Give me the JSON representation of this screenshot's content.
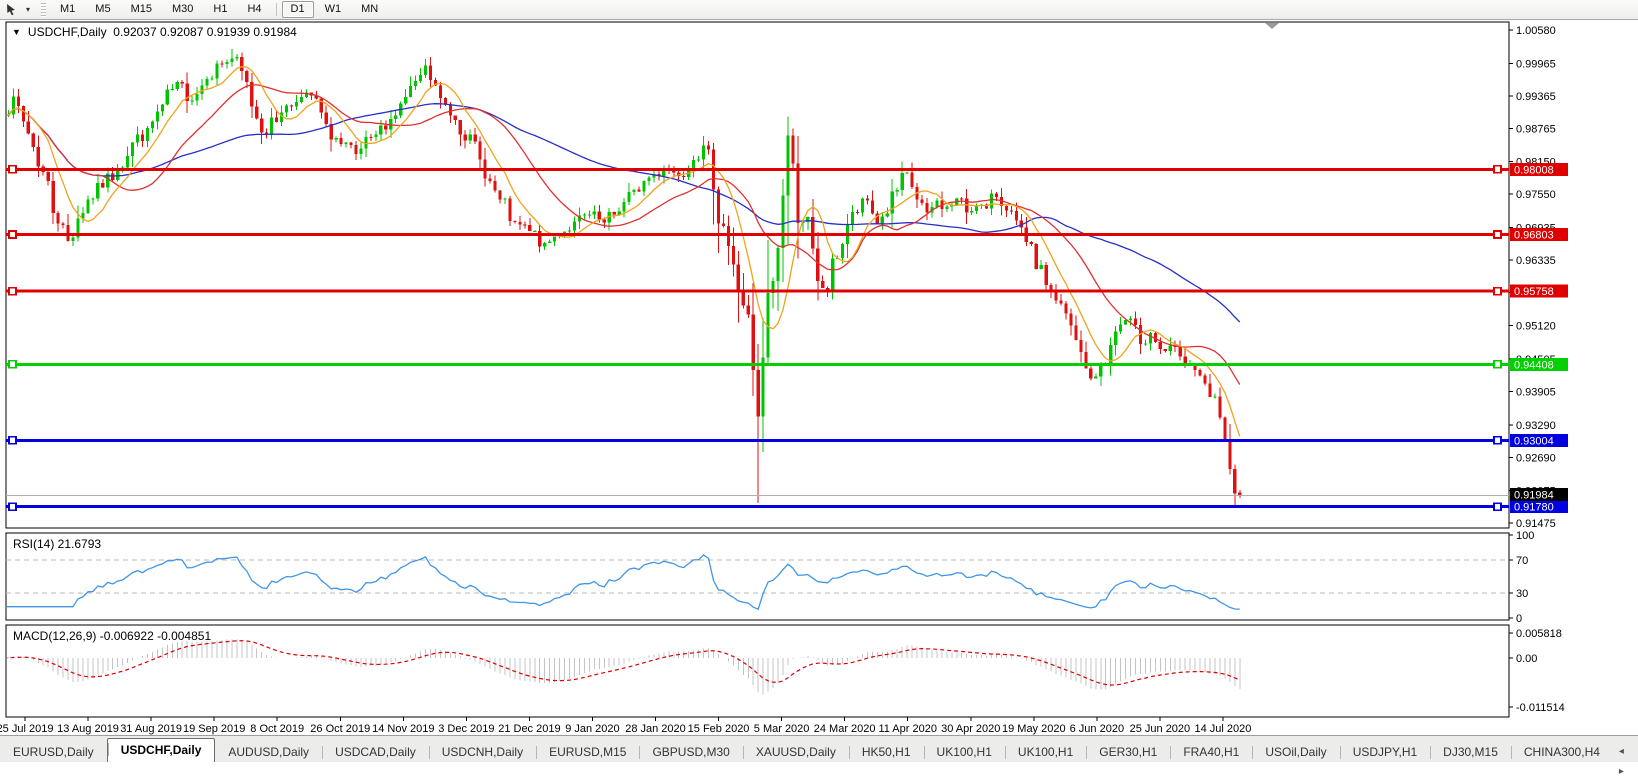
{
  "toolbar": {
    "timeframes": [
      "M1",
      "M5",
      "M15",
      "M30",
      "H1",
      "H4",
      "D1",
      "W1",
      "MN"
    ],
    "active_timeframe": "D1"
  },
  "tabs": {
    "items": [
      "EURUSD,Daily",
      "USDCHF,Daily",
      "AUDUSD,Daily",
      "USDCAD,Daily",
      "USDCNH,Daily",
      "EURUSD,M15",
      "GBPUSD,M30",
      "XAUUSD,Daily",
      "HK50,H1",
      "UK100,H1",
      "UK100,H1",
      "GER30,H1",
      "FRA40,H1",
      "USOil,Daily",
      "USDJPY,H1",
      "DJ30,M15",
      "CHINA300,H4"
    ],
    "active": "USDCHF,Daily",
    "scroll_left": "◂",
    "scroll_right": "▸"
  },
  "chart_data": {
    "type": "candlestick",
    "symbol": "USDCHF",
    "period": "Daily",
    "title": "USDCHF,Daily",
    "title_triangle": "▼",
    "ohlc_text": "0.92037 0.92087 0.91939 0.91984",
    "ohlc": {
      "open": "0.92037",
      "high": "0.92087",
      "low": "0.91939",
      "close": "0.91984"
    },
    "price_axis": {
      "ticks": [
        "1.00580",
        "0.99965",
        "0.99365",
        "0.98765",
        "0.98150",
        "0.97550",
        "0.96935",
        "0.96335",
        "0.95735",
        "0.95120",
        "0.94505",
        "0.93905",
        "0.93290",
        "0.92690",
        "0.92075",
        "0.91475"
      ]
    },
    "time_axis": {
      "labels": [
        "25 Jul 2019",
        "13 Aug 2019",
        "31 Aug 2019",
        "19 Sep 2019",
        "8 Oct 2019",
        "26 Oct 2019",
        "14 Nov 2019",
        "3 Dec 2019",
        "21 Dec 2019",
        "9 Jan 2020",
        "28 Jan 2020",
        "15 Feb 2020",
        "5 Mar 2020",
        "24 Mar 2020",
        "11 Apr 2020",
        "30 Apr 2020",
        "19 May 2020",
        "6 Jun 2020",
        "25 Jun 2020",
        "14 Jul 2020"
      ]
    },
    "hlines": [
      {
        "label": "0.98008",
        "price": 0.98008,
        "color": "#e00000"
      },
      {
        "label": "0.96803",
        "price": 0.96803,
        "color": "#e00000"
      },
      {
        "label": "0.95758",
        "price": 0.95758,
        "color": "#e00000"
      },
      {
        "label": "0.94408",
        "price": 0.94408,
        "color": "#00d000"
      },
      {
        "label": "0.93004",
        "price": 0.93004,
        "color": "#0000e0"
      },
      {
        "label": "0.91780",
        "price": 0.9178,
        "color": "#0000e0"
      }
    ],
    "bid_line": {
      "label": "0.91984",
      "price": 0.91984,
      "line_color": "#b0b0b0",
      "label_bg": "#000000",
      "label_fg": "#ffffff"
    },
    "moving_averages": [
      {
        "name": "fast",
        "window": 8,
        "color": "#efa31d"
      },
      {
        "name": "medium",
        "window": 21,
        "color": "#e03030"
      },
      {
        "name": "slow",
        "window": 55,
        "color": "#2730c8"
      }
    ],
    "indicators": {
      "rsi": {
        "label": "RSI(14) 21.6793",
        "period": 14,
        "value": "21.6793",
        "levels": [
          70,
          30
        ],
        "axis_ticks": [
          "100",
          "70",
          "30",
          "0"
        ],
        "color": "#3f96e8"
      },
      "macd": {
        "label": "MACD(12,26,9) -0.006922 -0.004851",
        "params": "12,26,9",
        "main_value": "-0.006922",
        "signal_value": "-0.004851",
        "axis_ticks": [
          "0.005818",
          "0.00",
          "-0.011514"
        ],
        "hist_color": "#c4c4c4",
        "signal_color": "#e00000"
      }
    },
    "candles": {
      "count": 250,
      "bull_color": "#00c400",
      "bear_color": "#e01010",
      "first_open": 0.989,
      "last_close": 0.91984,
      "anchors": [
        [
          0,
          0.9905
        ],
        [
          2,
          0.9928
        ],
        [
          5,
          0.9868
        ],
        [
          8,
          0.9795
        ],
        [
          11,
          0.9705
        ],
        [
          13,
          0.9668
        ],
        [
          15,
          0.9712
        ],
        [
          17,
          0.9745
        ],
        [
          20,
          0.977
        ],
        [
          23,
          0.9802
        ],
        [
          26,
          0.985
        ],
        [
          29,
          0.9872
        ],
        [
          32,
          0.9918
        ],
        [
          35,
          0.9958
        ],
        [
          38,
          0.9932
        ],
        [
          41,
          0.9972
        ],
        [
          44,
          0.9996
        ],
        [
          46,
          1.0006
        ],
        [
          49,
          0.9958
        ],
        [
          51,
          0.9896
        ],
        [
          53,
          0.9868
        ],
        [
          56,
          0.9908
        ],
        [
          59,
          0.9928
        ],
        [
          62,
          0.9936
        ],
        [
          65,
          0.988
        ],
        [
          68,
          0.9846
        ],
        [
          71,
          0.9826
        ],
        [
          74,
          0.9856
        ],
        [
          77,
          0.988
        ],
        [
          80,
          0.992
        ],
        [
          83,
          0.9958
        ],
        [
          85,
          0.9988
        ],
        [
          88,
          0.993
        ],
        [
          91,
          0.9895
        ],
        [
          94,
          0.9858
        ],
        [
          97,
          0.979
        ],
        [
          100,
          0.9742
        ],
        [
          103,
          0.97
        ],
        [
          106,
          0.9686
        ],
        [
          109,
          0.966
        ],
        [
          112,
          0.9682
        ],
        [
          115,
          0.9702
        ],
        [
          118,
          0.9716
        ],
        [
          121,
          0.97
        ],
        [
          124,
          0.9726
        ],
        [
          127,
          0.976
        ],
        [
          130,
          0.9786
        ],
        [
          133,
          0.9802
        ],
        [
          136,
          0.9792
        ],
        [
          139,
          0.9822
        ],
        [
          141,
          0.9838
        ],
        [
          143,
          0.978
        ],
        [
          145,
          0.97
        ],
        [
          147,
          0.9618
        ],
        [
          149,
          0.9556
        ],
        [
          151,
          0.942
        ],
        [
          152,
          0.933
        ],
        [
          153,
          0.9452
        ],
        [
          154,
          0.956
        ],
        [
          156,
          0.9652
        ],
        [
          157,
          0.9762
        ],
        [
          158,
          0.9862
        ],
        [
          159,
          0.98
        ],
        [
          161,
          0.9712
        ],
        [
          163,
          0.964
        ],
        [
          164,
          0.9592
        ],
        [
          166,
          0.9576
        ],
        [
          168,
          0.9642
        ],
        [
          170,
          0.97
        ],
        [
          172,
          0.9722
        ],
        [
          174,
          0.9742
        ],
        [
          176,
          0.9702
        ],
        [
          178,
          0.9722
        ],
        [
          180,
          0.9762
        ],
        [
          182,
          0.979
        ],
        [
          184,
          0.9746
        ],
        [
          186,
          0.9716
        ],
        [
          188,
          0.9742
        ],
        [
          190,
          0.973
        ],
        [
          192,
          0.9746
        ],
        [
          194,
          0.9722
        ],
        [
          196,
          0.9736
        ],
        [
          198,
          0.9726
        ],
        [
          200,
          0.9752
        ],
        [
          202,
          0.973
        ],
        [
          204,
          0.97
        ],
        [
          206,
          0.9662
        ],
        [
          208,
          0.962
        ],
        [
          210,
          0.959
        ],
        [
          212,
          0.956
        ],
        [
          214,
          0.953
        ],
        [
          216,
          0.9482
        ],
        [
          218,
          0.9432
        ],
        [
          220,
          0.9412
        ],
        [
          221,
          0.9442
        ],
        [
          223,
          0.9472
        ],
        [
          224,
          0.9502
        ],
        [
          226,
          0.9522
        ],
        [
          228,
          0.9506
        ],
        [
          229,
          0.9482
        ],
        [
          231,
          0.9502
        ],
        [
          232,
          0.9482
        ],
        [
          234,
          0.9462
        ],
        [
          236,
          0.9472
        ],
        [
          237,
          0.9452
        ],
        [
          239,
          0.9442
        ],
        [
          240,
          0.9426
        ],
        [
          242,
          0.9402
        ],
        [
          244,
          0.9372
        ],
        [
          245,
          0.9332
        ],
        [
          246,
          0.9296
        ],
        [
          247,
          0.9262
        ],
        [
          248,
          0.9205
        ],
        [
          249,
          0.91984
        ]
      ],
      "specials": {
        "46": {
          "high": 1.0023
        },
        "85": {
          "high": 1.0004
        },
        "143": {
          "high": 0.9849
        },
        "152": {
          "low": 0.9185
        },
        "158": {
          "high": 0.9898
        },
        "249": {
          "open": 0.92037,
          "high": 0.92087,
          "low": 0.91939,
          "close": 0.91984
        }
      },
      "crash_zone": [
        143,
        163
      ]
    },
    "shift_marker_color": "#9a9a9a"
  }
}
